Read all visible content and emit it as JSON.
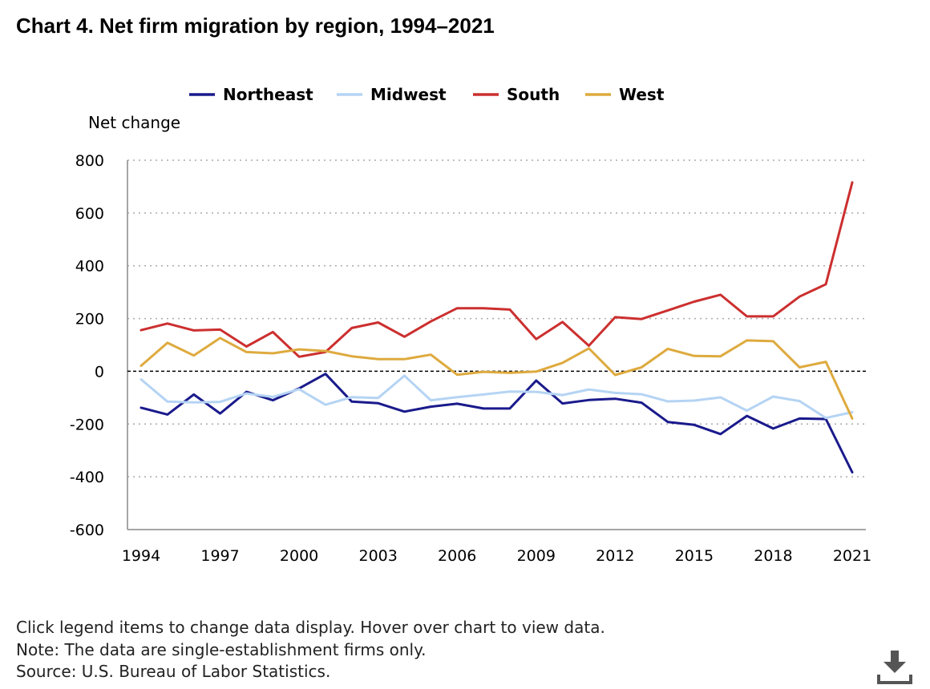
{
  "title": "Chart 4. Net firm migration by region, 1994–2021",
  "notes": {
    "instruction": "Click legend items to change data display. Hover over chart to view data.",
    "note": "Note: The data are single-establishment firms only.",
    "source": "Source: U.S. Bureau of Labor Statistics."
  },
  "download_icon": "download-icon",
  "chart_data": {
    "type": "line",
    "title": "Chart 4. Net firm migration by region, 1994–2021",
    "ylabel": "Net change",
    "xlabel": "",
    "ylim": [
      -600,
      800
    ],
    "yticks": [
      -600,
      -400,
      -200,
      0,
      200,
      400,
      600,
      800
    ],
    "xlim": [
      1994,
      2021
    ],
    "xticks": [
      1994,
      1997,
      2000,
      2003,
      2006,
      2009,
      2012,
      2015,
      2018,
      2021
    ],
    "grid": "horizontal dotted",
    "legend_position": "top",
    "x": [
      1994,
      1995,
      1996,
      1997,
      1998,
      1999,
      2000,
      2001,
      2002,
      2003,
      2004,
      2005,
      2006,
      2007,
      2008,
      2009,
      2010,
      2011,
      2012,
      2013,
      2014,
      2015,
      2016,
      2017,
      2018,
      2019,
      2020,
      2021
    ],
    "series": [
      {
        "name": "Northeast",
        "color": "#1a1a8c",
        "values": [
          -138,
          -164,
          -88,
          -160,
          -78,
          -110,
          -65,
          -10,
          -115,
          -121,
          -153,
          -134,
          -123,
          -141,
          -141,
          -35,
          -122,
          -109,
          -104,
          -119,
          -192,
          -203,
          -238,
          -169,
          -217,
          -179,
          -181,
          -383
        ]
      },
      {
        "name": "Midwest",
        "color": "#b5d4f4",
        "values": [
          -31,
          -115,
          -118,
          -116,
          -84,
          -97,
          -68,
          -127,
          -98,
          -101,
          -17,
          -110,
          -98,
          -88,
          -77,
          -78,
          -90,
          -69,
          -82,
          -87,
          -114,
          -111,
          -99,
          -149,
          -96,
          -113,
          -177,
          -155
        ]
      },
      {
        "name": "South",
        "color": "#cc2f2f",
        "values": [
          156,
          181,
          155,
          158,
          94,
          149,
          55,
          73,
          164,
          185,
          131,
          189,
          239,
          239,
          234,
          122,
          187,
          97,
          205,
          198,
          231,
          264,
          290,
          208,
          208,
          283,
          330,
          716
        ]
      },
      {
        "name": "West",
        "color": "#deaa3e",
        "values": [
          21,
          108,
          60,
          126,
          73,
          68,
          83,
          77,
          57,
          46,
          46,
          63,
          -13,
          -2,
          -6,
          -1,
          32,
          87,
          -14,
          15,
          85,
          58,
          57,
          117,
          114,
          15,
          36,
          -179
        ]
      }
    ]
  }
}
